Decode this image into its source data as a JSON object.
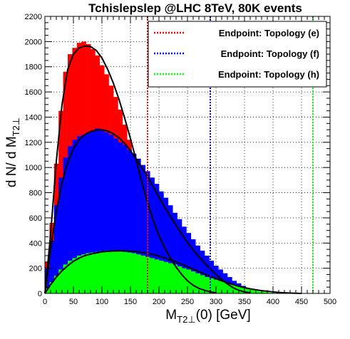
{
  "chart_data": {
    "type": "histogram",
    "title": "Tchislepslep @LHC 8TeV, 80K events",
    "xlabel": {
      "main": "M",
      "sub": "T2⊥",
      "rest": "(0) [GeV]"
    },
    "ylabel": {
      "main": "d N/ d M",
      "sub": "T2⊥"
    },
    "xlim": [
      0,
      500
    ],
    "ylim": [
      0,
      2200
    ],
    "grid": true,
    "legend_position": "top-right",
    "x_ticks": [
      0,
      50,
      100,
      150,
      200,
      250,
      300,
      350,
      400,
      450,
      500
    ],
    "y_ticks": [
      0,
      200,
      400,
      600,
      800,
      1000,
      1200,
      1400,
      1600,
      1800,
      2000,
      2200
    ],
    "bin_width": 8,
    "series": [
      {
        "color": "#ff0000",
        "bin_start": 0,
        "values": [
          250,
          560,
          1030,
          1450,
          1760,
          1900,
          1950,
          1990,
          2000,
          1980,
          1940,
          1890,
          1810,
          1740,
          1650,
          1560,
          1460,
          1340,
          1220,
          1100,
          960,
          820,
          680,
          560,
          450,
          360,
          290,
          230,
          180,
          130,
          100,
          70,
          50,
          35,
          25,
          15,
          10,
          5
        ],
        "fit": [
          [
            0,
            0
          ],
          [
            10,
            470
          ],
          [
            20,
            1050
          ],
          [
            30,
            1500
          ],
          [
            40,
            1780
          ],
          [
            50,
            1900
          ],
          [
            60,
            1950
          ],
          [
            70,
            1965
          ],
          [
            80,
            1960
          ],
          [
            90,
            1930
          ],
          [
            100,
            1870
          ],
          [
            110,
            1780
          ],
          [
            120,
            1670
          ],
          [
            130,
            1540
          ],
          [
            140,
            1390
          ],
          [
            150,
            1230
          ],
          [
            160,
            1060
          ],
          [
            170,
            880
          ],
          [
            180,
            720
          ],
          [
            190,
            580
          ],
          [
            200,
            460
          ],
          [
            210,
            360
          ],
          [
            220,
            280
          ],
          [
            230,
            210
          ],
          [
            240,
            150
          ],
          [
            250,
            100
          ],
          [
            260,
            65
          ],
          [
            270,
            40
          ],
          [
            280,
            25
          ],
          [
            290,
            12
          ],
          [
            300,
            5
          ]
        ]
      },
      {
        "color": "#0000ff",
        "bin_start": 0,
        "values": [
          200,
          420,
          700,
          920,
          1080,
          1170,
          1220,
          1250,
          1260,
          1280,
          1290,
          1310,
          1300,
          1280,
          1260,
          1230,
          1200,
          1180,
          1140,
          1110,
          1070,
          1020,
          970,
          920,
          870,
          810,
          760,
          700,
          640,
          590,
          530,
          480,
          430,
          380,
          340,
          300,
          260,
          220,
          190,
          160,
          130,
          100,
          80,
          60,
          40,
          25,
          15,
          5
        ],
        "fit": [
          [
            0,
            0
          ],
          [
            10,
            350
          ],
          [
            20,
            650
          ],
          [
            30,
            880
          ],
          [
            40,
            1040
          ],
          [
            50,
            1150
          ],
          [
            60,
            1220
          ],
          [
            70,
            1260
          ],
          [
            80,
            1285
          ],
          [
            90,
            1298
          ],
          [
            100,
            1300
          ],
          [
            110,
            1290
          ],
          [
            120,
            1268
          ],
          [
            130,
            1235
          ],
          [
            140,
            1190
          ],
          [
            150,
            1135
          ],
          [
            160,
            1070
          ],
          [
            170,
            1000
          ],
          [
            180,
            925
          ],
          [
            190,
            845
          ],
          [
            200,
            765
          ],
          [
            210,
            685
          ],
          [
            220,
            610
          ],
          [
            230,
            540
          ],
          [
            240,
            470
          ],
          [
            250,
            405
          ],
          [
            260,
            345
          ],
          [
            270,
            290
          ],
          [
            280,
            240
          ],
          [
            290,
            195
          ],
          [
            300,
            150
          ],
          [
            310,
            110
          ],
          [
            320,
            75
          ],
          [
            330,
            45
          ],
          [
            340,
            25
          ],
          [
            350,
            12
          ],
          [
            360,
            5
          ]
        ]
      },
      {
        "color": "#00ff00",
        "bin_start": 0,
        "values": [
          40,
          90,
          140,
          190,
          230,
          260,
          280,
          300,
          310,
          320,
          325,
          330,
          335,
          340,
          340,
          340,
          335,
          330,
          325,
          320,
          310,
          300,
          290,
          280,
          270,
          260,
          250,
          240,
          230,
          215,
          200,
          190,
          175,
          160,
          145,
          130,
          120,
          110,
          100,
          90,
          80,
          70,
          60,
          50,
          40,
          30,
          20,
          15,
          10,
          5
        ],
        "fit": [
          [
            0,
            0
          ],
          [
            10,
            70
          ],
          [
            20,
            130
          ],
          [
            30,
            180
          ],
          [
            40,
            220
          ],
          [
            50,
            255
          ],
          [
            60,
            280
          ],
          [
            70,
            300
          ],
          [
            80,
            312
          ],
          [
            90,
            322
          ],
          [
            100,
            330
          ],
          [
            110,
            334
          ],
          [
            120,
            337
          ],
          [
            130,
            338
          ],
          [
            140,
            338
          ],
          [
            150,
            336
          ],
          [
            160,
            332
          ],
          [
            170,
            326
          ],
          [
            180,
            318
          ],
          [
            190,
            308
          ],
          [
            200,
            296
          ],
          [
            210,
            282
          ],
          [
            220,
            266
          ],
          [
            230,
            249
          ],
          [
            240,
            231
          ],
          [
            250,
            212
          ],
          [
            260,
            193
          ],
          [
            270,
            173
          ],
          [
            280,
            154
          ],
          [
            290,
            135
          ],
          [
            300,
            117
          ],
          [
            310,
            100
          ],
          [
            320,
            84
          ],
          [
            330,
            70
          ],
          [
            340,
            57
          ],
          [
            350,
            46
          ],
          [
            360,
            37
          ],
          [
            370,
            29
          ],
          [
            380,
            22
          ],
          [
            390,
            17
          ],
          [
            400,
            12
          ],
          [
            410,
            8
          ],
          [
            420,
            5
          ],
          [
            430,
            3
          ],
          [
            440,
            1
          ],
          [
            450,
            0
          ]
        ]
      }
    ],
    "endpoints": [
      {
        "label": "Endpoint: Topology (e)",
        "x": 180,
        "color": "#ff0000"
      },
      {
        "label": "Endpoint: Topology (f)",
        "x": 290,
        "color": "#0000ff"
      },
      {
        "label": "Endpoint: Topology (h)",
        "x": 470,
        "color": "#00ff00"
      }
    ]
  }
}
